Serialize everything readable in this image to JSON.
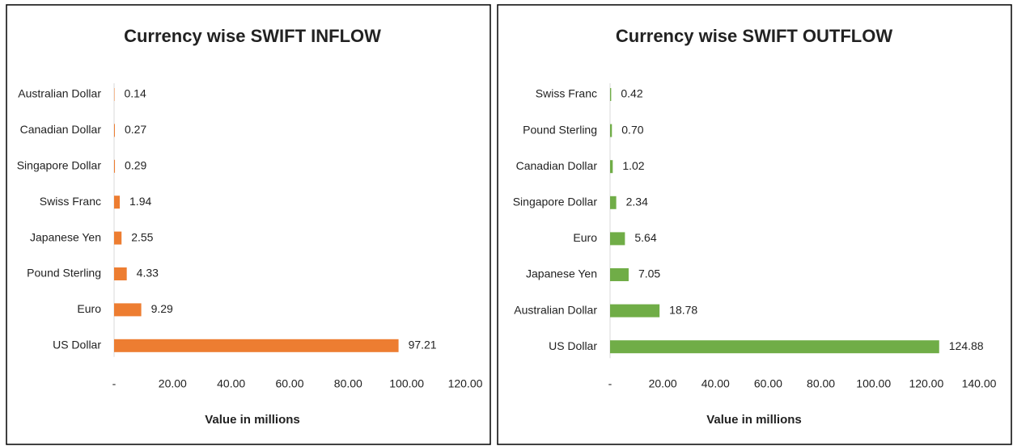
{
  "chart_data": [
    {
      "type": "bar",
      "orientation": "horizontal",
      "title": "Currency wise SWIFT INFLOW",
      "x_label": "Value in millions",
      "categories": [
        "Australian Dollar",
        "Canadian Dollar",
        "Singapore Dollar",
        "Swiss Franc",
        "Japanese Yen",
        "Pound Sterling",
        "Euro",
        "US Dollar"
      ],
      "values": [
        0.14,
        0.27,
        0.29,
        1.94,
        2.55,
        4.33,
        9.29,
        97.21
      ],
      "value_labels": [
        "0.14",
        "0.27",
        "0.29",
        "1.94",
        "2.55",
        "4.33",
        "9.29",
        "97.21"
      ],
      "color": "#ed7d31",
      "xlim": [
        0,
        120
      ],
      "xticks": [
        {
          "value": 0,
          "label": "-"
        },
        {
          "value": 20,
          "label": "20.00"
        },
        {
          "value": 40,
          "label": "40.00"
        },
        {
          "value": 60,
          "label": "60.00"
        },
        {
          "value": 80,
          "label": "80.00"
        },
        {
          "value": 100,
          "label": "100.00"
        },
        {
          "value": 120,
          "label": "120.00"
        }
      ]
    },
    {
      "type": "bar",
      "orientation": "horizontal",
      "title": "Currency wise SWIFT OUTFLOW",
      "x_label": "Value in millions",
      "categories": [
        "Swiss Franc",
        "Pound Sterling",
        "Canadian Dollar",
        "Singapore Dollar",
        "Euro",
        "Japanese Yen",
        "Australian Dollar",
        "US Dollar"
      ],
      "values": [
        0.42,
        0.7,
        1.02,
        2.34,
        5.64,
        7.05,
        18.78,
        124.88
      ],
      "value_labels": [
        "0.42",
        "0.70",
        "1.02",
        "2.34",
        "5.64",
        "7.05",
        "18.78",
        "124.88"
      ],
      "color": "#70ad47",
      "xlim": [
        0,
        140
      ],
      "xticks": [
        {
          "value": 0,
          "label": "-"
        },
        {
          "value": 20,
          "label": "20.00"
        },
        {
          "value": 40,
          "label": "40.00"
        },
        {
          "value": 60,
          "label": "60.00"
        },
        {
          "value": 80,
          "label": "80.00"
        },
        {
          "value": 100,
          "label": "100.00"
        },
        {
          "value": 120,
          "label": "120.00"
        },
        {
          "value": 140,
          "label": "140.00"
        }
      ]
    }
  ]
}
